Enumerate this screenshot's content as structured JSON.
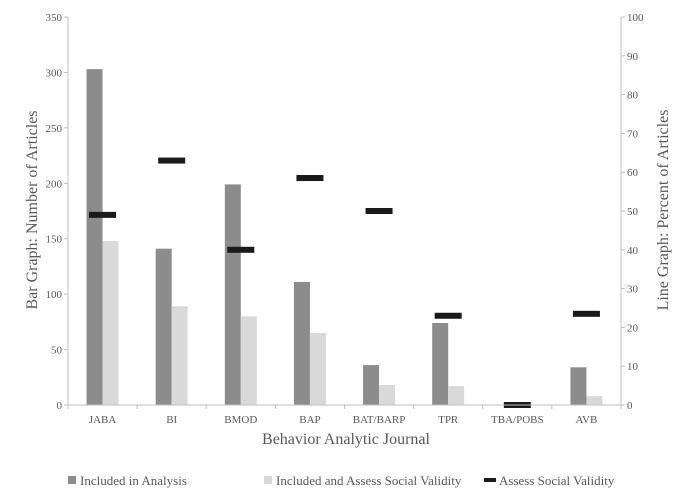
{
  "chart_data": {
    "type": "bar",
    "categories": [
      "JABA",
      "BI",
      "BMOD",
      "BAP",
      "BAT/BARP",
      "TPR",
      "TBA/POBS",
      "AVB"
    ],
    "series": [
      {
        "name": "Included in Analysis",
        "axis": "left",
        "kind": "bar",
        "color": "#8c8c8c",
        "values": [
          303,
          141,
          199,
          111,
          36,
          74,
          0,
          34
        ]
      },
      {
        "name": "Included and Assess Social Validity",
        "axis": "left",
        "kind": "bar",
        "color": "#d9d9d9",
        "values": [
          148,
          89,
          80,
          65,
          18,
          17,
          0,
          8
        ]
      },
      {
        "name": "Assess Social Validity",
        "axis": "right",
        "kind": "marker",
        "color": "#1a1a1a",
        "values": [
          49,
          63,
          40,
          58.5,
          50,
          23,
          0,
          23.5
        ]
      }
    ],
    "xlabel": "Behavior Analytic Journal",
    "ylabel": "Bar Graph: Number of Articles",
    "y2label": "Line Graph: Percent of Articles",
    "ylim": [
      0,
      350
    ],
    "yticks": [
      0,
      50,
      100,
      150,
      200,
      250,
      300,
      350
    ],
    "y2lim": [
      0,
      100
    ],
    "y2ticks": [
      0,
      10,
      20,
      30,
      40,
      50,
      60,
      70,
      80,
      90,
      100
    ],
    "legend_position": "bottom",
    "grid": false
  }
}
